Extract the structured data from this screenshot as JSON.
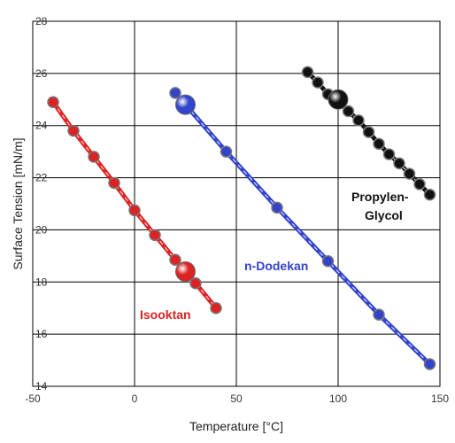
{
  "chart_data": {
    "type": "scatter",
    "title": "",
    "xlabel": "Temperature [°C]",
    "ylabel": "Surface Tension [mN/m]",
    "xlim": [
      -50,
      150
    ],
    "ylim": [
      14,
      28
    ],
    "xticks": [
      -50,
      0,
      50,
      100,
      150
    ],
    "yticks": [
      14,
      16,
      18,
      20,
      22,
      24,
      26,
      28
    ],
    "grid": true,
    "series": [
      {
        "name": "Isooktan",
        "color": "#dd2222",
        "points": [
          [
            -40,
            24.9
          ],
          [
            -30,
            23.8
          ],
          [
            -20,
            22.8
          ],
          [
            -10,
            21.8
          ],
          [
            0,
            20.75
          ],
          [
            10,
            19.8
          ],
          [
            20,
            18.85
          ],
          [
            30,
            17.95
          ],
          [
            40,
            17.0
          ]
        ],
        "highlight": [
          25,
          18.4
        ]
      },
      {
        "name": "n-Dodekan",
        "color": "#3344cc",
        "points": [
          [
            20,
            25.25
          ],
          [
            45,
            23.0
          ],
          [
            70,
            20.85
          ],
          [
            95,
            18.8
          ],
          [
            120,
            16.75
          ],
          [
            145,
            14.85
          ]
        ],
        "highlight": [
          25,
          24.8
        ]
      },
      {
        "name": "Propylen-\nGlycol",
        "color": "#111111",
        "points": [
          [
            85,
            26.05
          ],
          [
            90,
            25.65
          ],
          [
            95,
            25.2
          ],
          [
            100,
            24.95
          ],
          [
            105,
            24.55
          ],
          [
            110,
            24.2
          ],
          [
            115,
            23.75
          ],
          [
            120,
            23.3
          ],
          [
            125,
            22.9
          ],
          [
            130,
            22.55
          ],
          [
            135,
            22.15
          ],
          [
            140,
            21.75
          ],
          [
            145,
            21.35
          ]
        ],
        "highlight": [
          100,
          25.0
        ]
      }
    ]
  },
  "labels": {
    "isooktan": "Isooktan",
    "dodekan": "n-Dodekan",
    "glycol_line1": "Propylen-",
    "glycol_line2": "Glycol"
  }
}
